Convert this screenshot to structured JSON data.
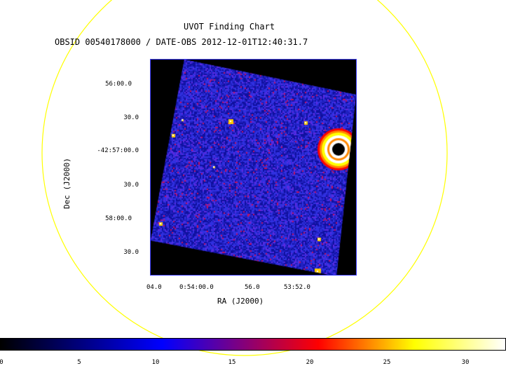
{
  "title": "UVOT Finding Chart",
  "subtitle": "OBSID 00540178000 / DATE-OBS 2012-12-01T12:40:31.7",
  "axes": {
    "xlabel": "RA (J2000)",
    "ylabel": "Dec (J2000)",
    "dec_ticks": [
      "56:00.0",
      "30.0",
      "-42:57:00.0",
      "30.0",
      "58:00.0",
      "30.0"
    ],
    "ra_ticks": [
      "04.0",
      "0:54:00.0",
      "56.0",
      "53:52.0"
    ]
  },
  "colorbar": {
    "ticks": [
      "0",
      "5",
      "10",
      "15",
      "20",
      "25",
      "30"
    ],
    "colors": [
      "#000000",
      "#0000ff",
      "#ff0000",
      "#ffff00",
      "#ffffff"
    ]
  },
  "overlay": {
    "circle_color": "#ffff00",
    "frame_color": "#4040ff"
  },
  "image": {
    "background_color": "#2a2ad8",
    "sources": [
      "point-source",
      "bright-saturated-source"
    ]
  }
}
